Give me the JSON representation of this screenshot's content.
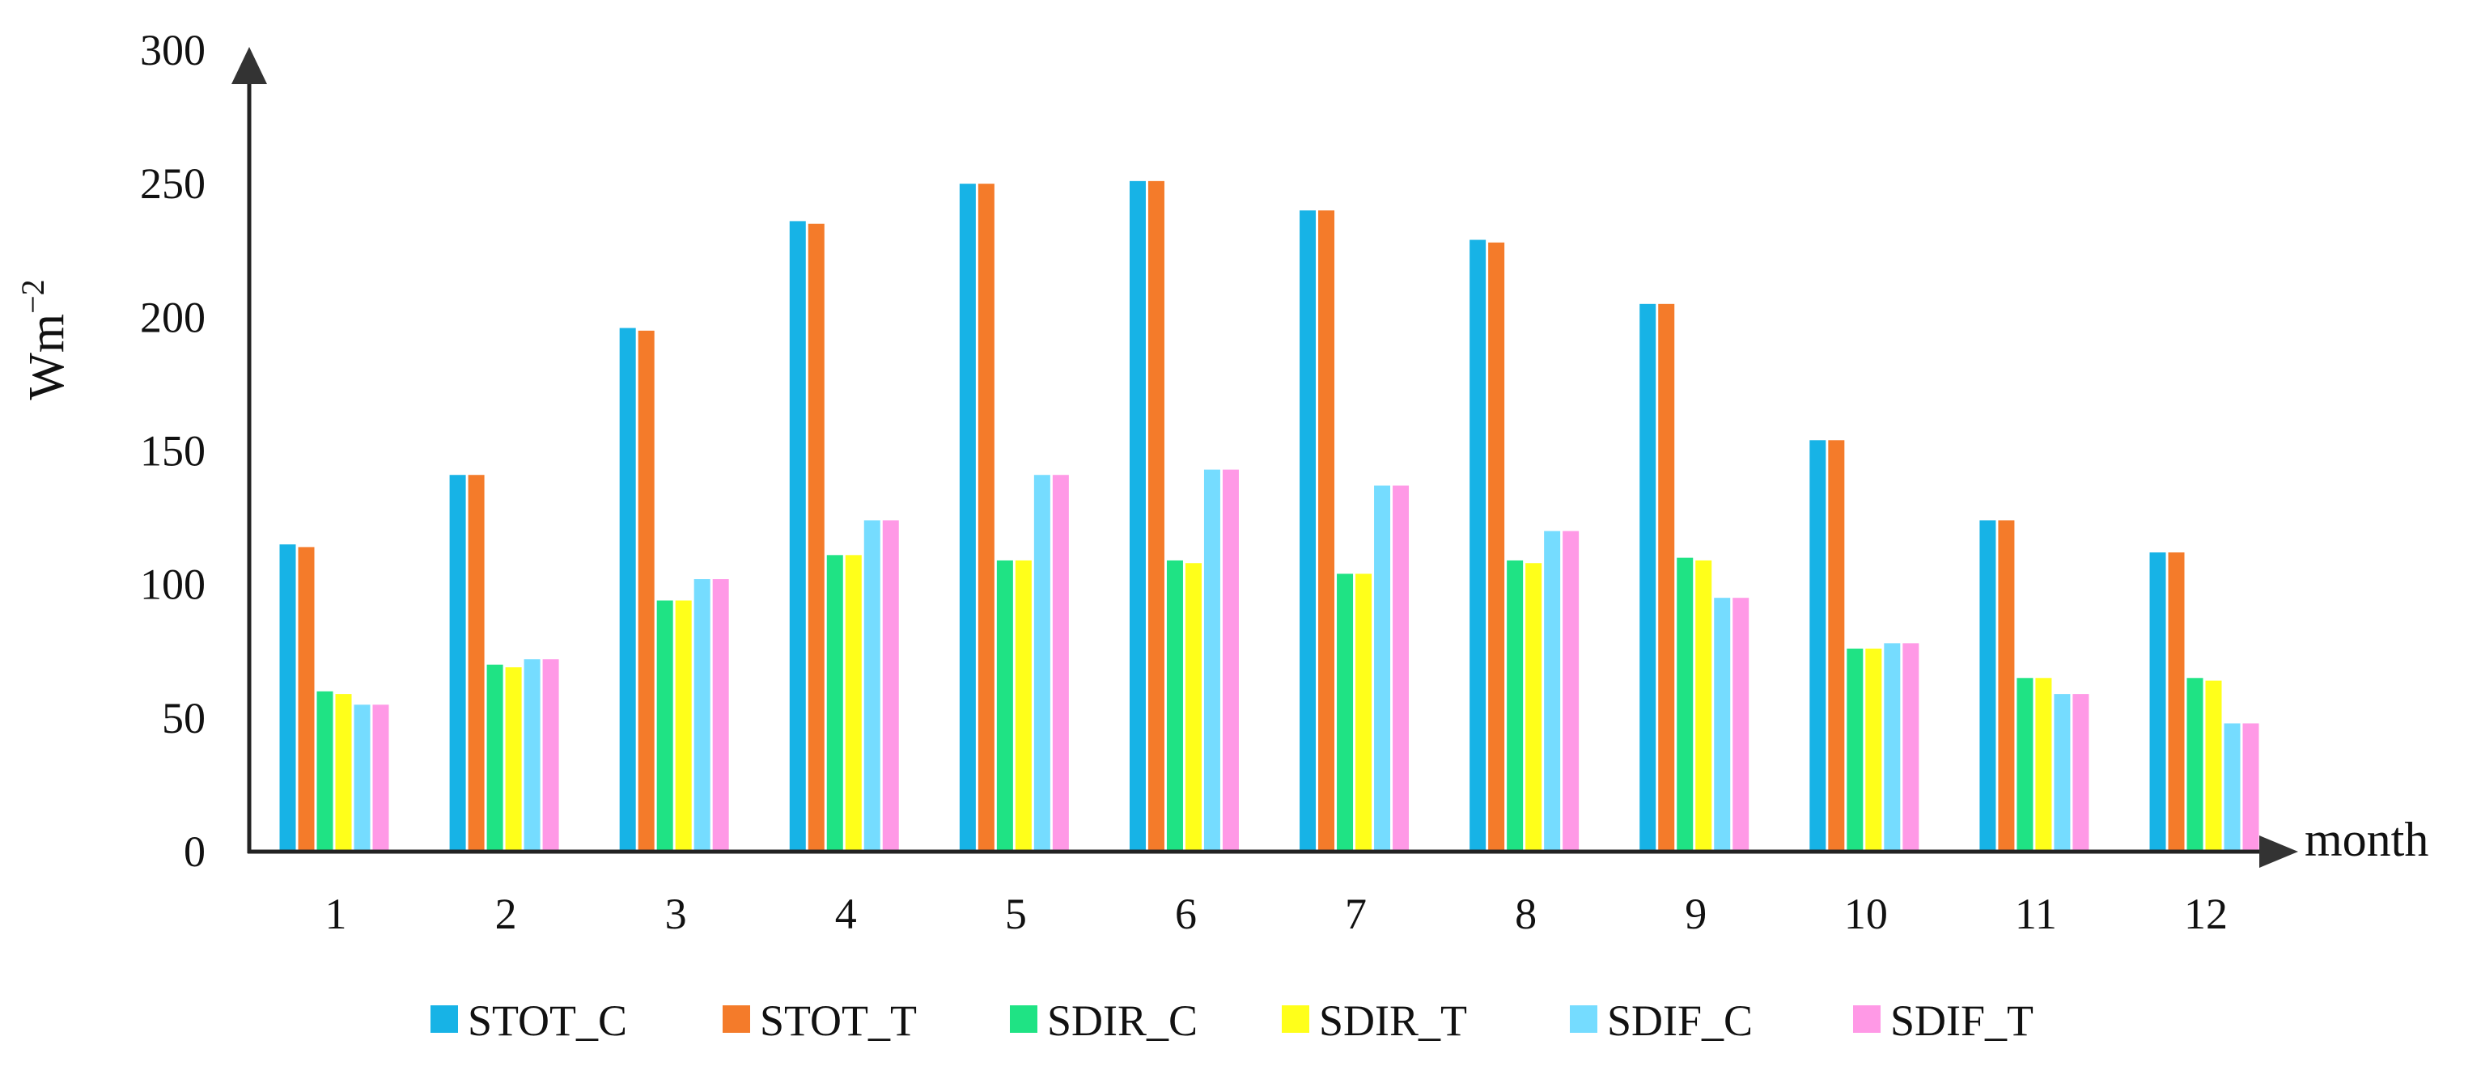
{
  "chart_data": {
    "type": "bar",
    "title": "",
    "xlabel": "month",
    "ylabel_base": "Wm",
    "ylabel_sup": "−2",
    "ylim": [
      0,
      300
    ],
    "yticks": [
      0,
      50,
      100,
      150,
      200,
      250,
      300
    ],
    "ytick_labels": [
      "0",
      "50",
      "100",
      "150",
      "200",
      "250",
      "300"
    ],
    "categories": [
      "1",
      "2",
      "3",
      "4",
      "5",
      "6",
      "7",
      "8",
      "9",
      "10",
      "11",
      "12"
    ],
    "legend_position": "bottom",
    "series": [
      {
        "name": "STOT_C",
        "color": "#17b3e6",
        "values": [
          115,
          141,
          196,
          236,
          250,
          251,
          240,
          229,
          205,
          154,
          124,
          112
        ]
      },
      {
        "name": "STOT_T",
        "color": "#f47b2a",
        "values": [
          114,
          141,
          195,
          235,
          250,
          251,
          240,
          228,
          205,
          154,
          124,
          112
        ]
      },
      {
        "name": "SDIR_C",
        "color": "#1fe384",
        "values": [
          60,
          70,
          94,
          111,
          109,
          109,
          104,
          109,
          110,
          76,
          65,
          65
        ]
      },
      {
        "name": "SDIR_T",
        "color": "#ffff1a",
        "values": [
          59,
          69,
          94,
          111,
          109,
          108,
          104,
          108,
          109,
          76,
          65,
          64
        ]
      },
      {
        "name": "SDIF_C",
        "color": "#75dcff",
        "values": [
          55,
          72,
          102,
          124,
          141,
          143,
          137,
          120,
          95,
          78,
          59,
          48
        ]
      },
      {
        "name": "SDIF_T",
        "color": "#ff99e6",
        "values": [
          55,
          72,
          102,
          124,
          141,
          143,
          137,
          120,
          95,
          78,
          59,
          48
        ]
      }
    ]
  }
}
